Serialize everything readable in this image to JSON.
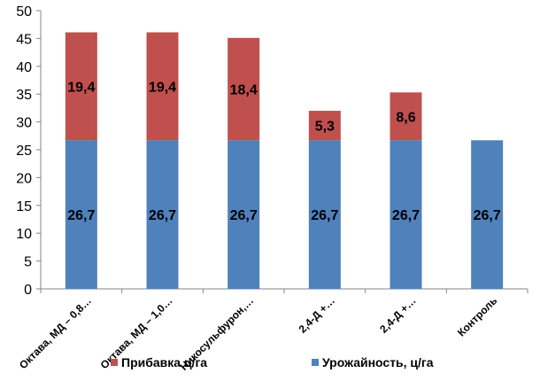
{
  "chart_data": {
    "type": "bar",
    "stacked": true,
    "title": "",
    "xlabel": "",
    "ylabel": "",
    "ylim": [
      0,
      50
    ],
    "ytick_step": 5,
    "grid": false,
    "categories": [
      "Октава, МД – 0,8…",
      "Октава, МД – 1,0…",
      "Никосульфурон,…",
      "2,4-Д +…",
      "2,4-Д +…",
      "Контроль"
    ],
    "series": [
      {
        "name": "Урожайность, ц/га",
        "color": "#4F81BD",
        "values": [
          26.7,
          26.7,
          26.7,
          26.7,
          26.7,
          26.7
        ],
        "labels": [
          "26,7",
          "26,7",
          "26,7",
          "26,7",
          "26,7",
          "26,7"
        ]
      },
      {
        "name": "Прибавка ц/га",
        "color": "#C0504D",
        "values": [
          19.4,
          19.4,
          18.4,
          5.3,
          8.6,
          null
        ],
        "labels": [
          "19,4",
          "19,4",
          "18,4",
          "5,3",
          "8,6",
          null
        ]
      }
    ],
    "legend": {
      "position": "bottom",
      "entries": [
        {
          "label": "Прибавка ц/га",
          "color": "#C0504D"
        },
        {
          "label": "Урожайность, ц/га",
          "color": "#4F81BD"
        }
      ]
    }
  }
}
